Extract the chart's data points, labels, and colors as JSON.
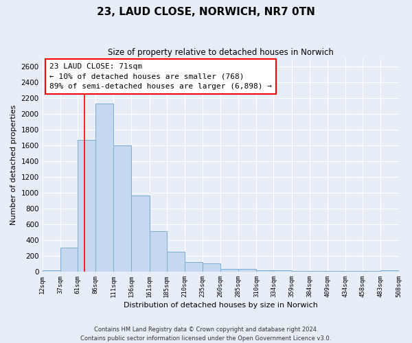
{
  "title": "23, LAUD CLOSE, NORWICH, NR7 0TN",
  "subtitle": "Size of property relative to detached houses in Norwich",
  "xlabel": "Distribution of detached houses by size in Norwich",
  "ylabel": "Number of detached properties",
  "bin_edges": [
    12,
    37,
    61,
    86,
    111,
    136,
    161,
    185,
    210,
    235,
    260,
    285,
    310,
    334,
    359,
    384,
    409,
    434,
    458,
    483,
    508
  ],
  "bin_labels": [
    "12sqm",
    "37sqm",
    "61sqm",
    "86sqm",
    "111sqm",
    "136sqm",
    "161sqm",
    "185sqm",
    "210sqm",
    "235sqm",
    "260sqm",
    "285sqm",
    "310sqm",
    "334sqm",
    "359sqm",
    "384sqm",
    "409sqm",
    "434sqm",
    "458sqm",
    "483sqm",
    "508sqm"
  ],
  "counts": [
    20,
    300,
    1670,
    2130,
    1600,
    965,
    510,
    255,
    125,
    100,
    30,
    30,
    15,
    15,
    10,
    5,
    5,
    5,
    5,
    20
  ],
  "bar_color": "#c5d8f0",
  "bar_edge_color": "#7aadd4",
  "property_line_x": 71,
  "property_line_color": "red",
  "annotation_title": "23 LAUD CLOSE: 71sqm",
  "annotation_line1": "← 10% of detached houses are smaller (768)",
  "annotation_line2": "89% of semi-detached houses are larger (6,898) →",
  "annotation_box_color": "white",
  "annotation_box_edge_color": "red",
  "ylim": [
    0,
    2700
  ],
  "yticks": [
    0,
    200,
    400,
    600,
    800,
    1000,
    1200,
    1400,
    1600,
    1800,
    2000,
    2200,
    2400,
    2600
  ],
  "footer_line1": "Contains HM Land Registry data © Crown copyright and database right 2024.",
  "footer_line2": "Contains public sector information licensed under the Open Government Licence v3.0.",
  "background_color": "#e8eef8",
  "grid_color": "white"
}
